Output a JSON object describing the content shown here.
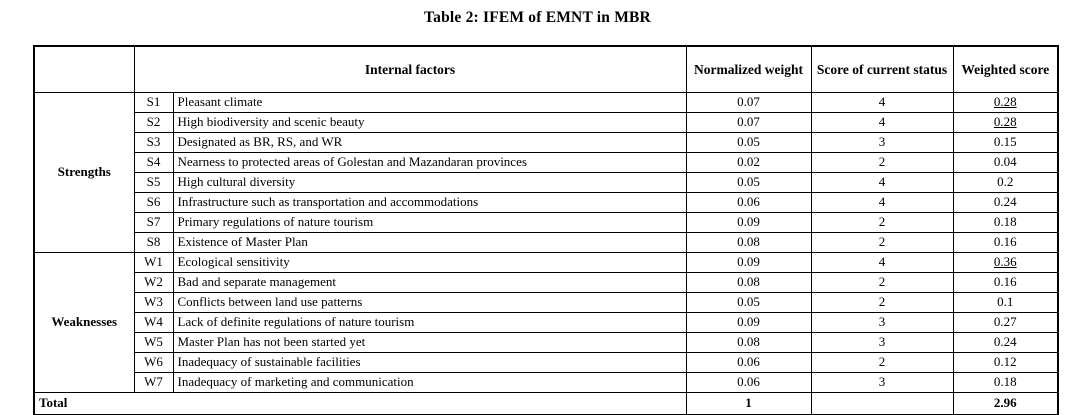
{
  "title": "Table 2: IFEM of EMNT in MBR",
  "table": {
    "headers": {
      "internal_factors": "Internal factors",
      "normalized_weight": "Normalized weight",
      "score_current_status": "Score of current status",
      "weighted_score": "Weighted score"
    },
    "groups": [
      {
        "label": "Strengths",
        "rows": [
          {
            "code": "S1",
            "factor": "Pleasant climate",
            "weight": "0.07",
            "score": "4",
            "weighted": "0.28",
            "underline": true
          },
          {
            "code": "S2",
            "factor": "High biodiversity and scenic beauty",
            "weight": "0.07",
            "score": "4",
            "weighted": "0.28",
            "underline": true
          },
          {
            "code": "S3",
            "factor": "Designated as BR, RS, and WR",
            "weight": "0.05",
            "score": "3",
            "weighted": "0.15",
            "underline": false
          },
          {
            "code": "S4",
            "factor": "Nearness to protected areas of Golestan and Mazandaran provinces",
            "weight": "0.02",
            "score": "2",
            "weighted": "0.04",
            "underline": false
          },
          {
            "code": "S5",
            "factor": "High cultural diversity",
            "weight": "0.05",
            "score": "4",
            "weighted": "0.2",
            "underline": false
          },
          {
            "code": "S6",
            "factor": "Infrastructure such as transportation and accommodations",
            "weight": "0.06",
            "score": "4",
            "weighted": "0.24",
            "underline": false
          },
          {
            "code": "S7",
            "factor": "Primary regulations of nature tourism",
            "weight": "0.09",
            "score": "2",
            "weighted": "0.18",
            "underline": false
          },
          {
            "code": "S8",
            "factor": "Existence of Master Plan",
            "weight": "0.08",
            "score": "2",
            "weighted": "0.16",
            "underline": false
          }
        ]
      },
      {
        "label": "Weaknesses",
        "rows": [
          {
            "code": "W1",
            "factor": "Ecological sensitivity",
            "weight": "0.09",
            "score": "4",
            "weighted": "0.36",
            "underline": true
          },
          {
            "code": "W2",
            "factor": "Bad and separate management",
            "weight": "0.08",
            "score": "2",
            "weighted": "0.16",
            "underline": false
          },
          {
            "code": "W3",
            "factor": "Conflicts between land use patterns",
            "weight": "0.05",
            "score": "2",
            "weighted": "0.1",
            "underline": false
          },
          {
            "code": "W4",
            "factor": "Lack of definite regulations of nature tourism",
            "weight": "0.09",
            "score": "3",
            "weighted": "0.27",
            "underline": false
          },
          {
            "code": "W5",
            "factor": "Master Plan has not been started yet",
            "weight": "0.08",
            "score": "3",
            "weighted": "0.24",
            "underline": false
          },
          {
            "code": "W6",
            "factor": "Inadequacy of sustainable facilities",
            "weight": "0.06",
            "score": "2",
            "weighted": "0.12",
            "underline": false
          },
          {
            "code": "W7",
            "factor": "Inadequacy of marketing and communication",
            "weight": "0.06",
            "score": "3",
            "weighted": "0.18",
            "underline": false
          }
        ]
      }
    ],
    "total": {
      "label": "Total",
      "weight": "1",
      "score": "",
      "weighted": "2.96"
    }
  },
  "colors": {
    "text": "#000000",
    "border": "#000000",
    "background": "#ffffff"
  }
}
